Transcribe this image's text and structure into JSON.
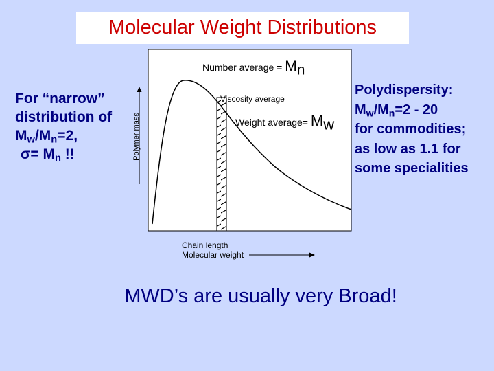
{
  "title": "Molecular Weight Distributions",
  "left_note": {
    "line1": "For “narrow”",
    "line2": "distribution of",
    "line3_a": "M",
    "line3_sub_a": "w",
    "line3_b": "/M",
    "line3_sub_b": "n",
    "line3_c": "=2,",
    "line4_a": "σ= M",
    "line4_sub": "n",
    "line4_b": " !!"
  },
  "right_note": {
    "line1": "Polydispersity:",
    "line2_a": "M",
    "line2_sub_a": "w",
    "line2_b": "/M",
    "line2_sub_b": "n",
    "line2_c": "=2 - 20",
    "line3": "for commodities;",
    "line4": "as low as 1.1 for",
    "line5": "some specialities"
  },
  "diagram": {
    "number_average_label": "Number average = ",
    "number_average_symbol": "M",
    "number_average_sub": "n",
    "viscosity_average_label": "Viscosity average",
    "weight_average_label": "Weight average= ",
    "weight_average_symbol": "M",
    "weight_average_sub": "w",
    "y_axis_label": "Polymer mass",
    "x_axis_label_line1": "Chain length",
    "x_axis_label_line2": "Molecular weight"
  },
  "footer": "MWD’s are usually very Broad!",
  "colors": {
    "background": "#ccd9ff",
    "title": "#cc0000",
    "emphasis_text": "#000080"
  }
}
